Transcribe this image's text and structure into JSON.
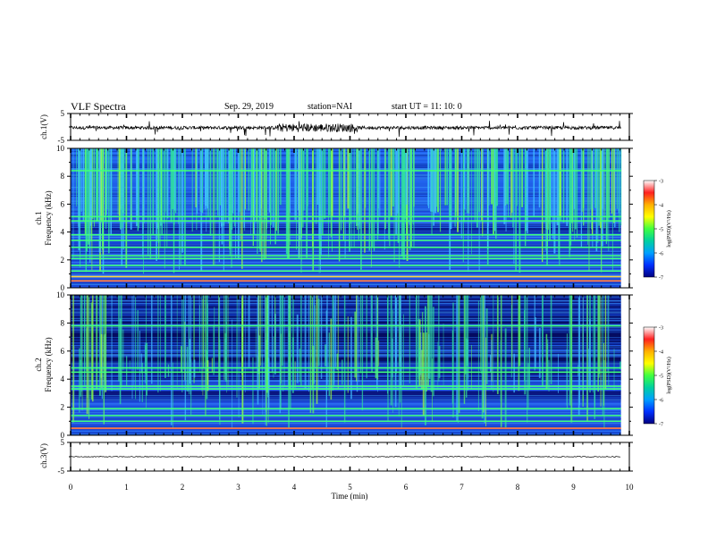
{
  "header": {
    "title": "VLF Spectra",
    "date": "Sep. 29, 2019",
    "station": "station=NAI",
    "start": "start  UT =   11: 10: 0"
  },
  "panels": {
    "ch1_wave": {
      "ylabel": "ch.1(V)",
      "yticks": [
        "5",
        "-5"
      ]
    },
    "ch1_spec": {
      "ylabel_line1": "ch.1",
      "ylabel_line2": "Frequency (kHz)",
      "yticks": [
        "0",
        "2",
        "4",
        "6",
        "8",
        "10"
      ]
    },
    "ch2_spec": {
      "ylabel_line1": "ch.2",
      "ylabel_line2": "Frequency (kHz)",
      "yticks": [
        "0",
        "2",
        "4",
        "6",
        "8",
        "10"
      ]
    },
    "ch3_wave": {
      "ylabel": "ch.3(V)",
      "yticks": [
        "5",
        "-5"
      ]
    }
  },
  "xaxis": {
    "label": "Time  (min)",
    "ticks": [
      "0",
      "1",
      "2",
      "3",
      "4",
      "5",
      "6",
      "7",
      "8",
      "9",
      "10"
    ]
  },
  "colorbar": {
    "label": "log(PSD)(V²/Hz)",
    "ticks": [
      "-3",
      "-4",
      "-5",
      "-6",
      "-7"
    ],
    "colors": [
      "#ffffff",
      "#ff2020",
      "#ffb000",
      "#ffff00",
      "#40ff40",
      "#00d0a0",
      "#00a0ff",
      "#0030ff",
      "#000080"
    ]
  },
  "chart_data": [
    {
      "type": "line",
      "title": "VLF Spectra",
      "xlabel": "Time  (min)",
      "ylabel": "ch.1(V)",
      "xlim": [
        0,
        10
      ],
      "ylim": [
        -5,
        5
      ],
      "baseline": -0.3,
      "data_end_min": 9.85
    },
    {
      "type": "heatmap",
      "xlabel": "Time  (min)",
      "ylabel": "Frequency (kHz)",
      "xlim": [
        0,
        10
      ],
      "ylim": [
        0,
        10
      ],
      "zlabel": "log(PSD)(V²/Hz)",
      "zlim": [
        -7,
        -3
      ],
      "persistent_lines_khz": [
        0.5,
        0.8,
        1.2,
        1.6,
        2.1,
        2.3,
        2.9,
        3.4,
        3.8,
        4.8,
        5.1,
        8.4
      ]
    },
    {
      "type": "heatmap",
      "xlabel": "Time  (min)",
      "ylabel": "Frequency (kHz)",
      "xlim": [
        0,
        10
      ],
      "ylim": [
        0,
        10
      ],
      "zlabel": "log(PSD)(V²/Hz)",
      "zlim": [
        -7,
        -3
      ],
      "persistent_lines_khz": [
        0.5,
        1.0,
        1.4,
        1.9,
        3.3,
        3.5,
        4.5,
        4.8,
        7.8
      ]
    },
    {
      "type": "line",
      "xlabel": "Time  (min)",
      "ylabel": "ch.3(V)",
      "xlim": [
        0,
        10
      ],
      "ylim": [
        -5,
        5
      ],
      "baseline": 0.0,
      "data_end_min": 9.85
    }
  ]
}
